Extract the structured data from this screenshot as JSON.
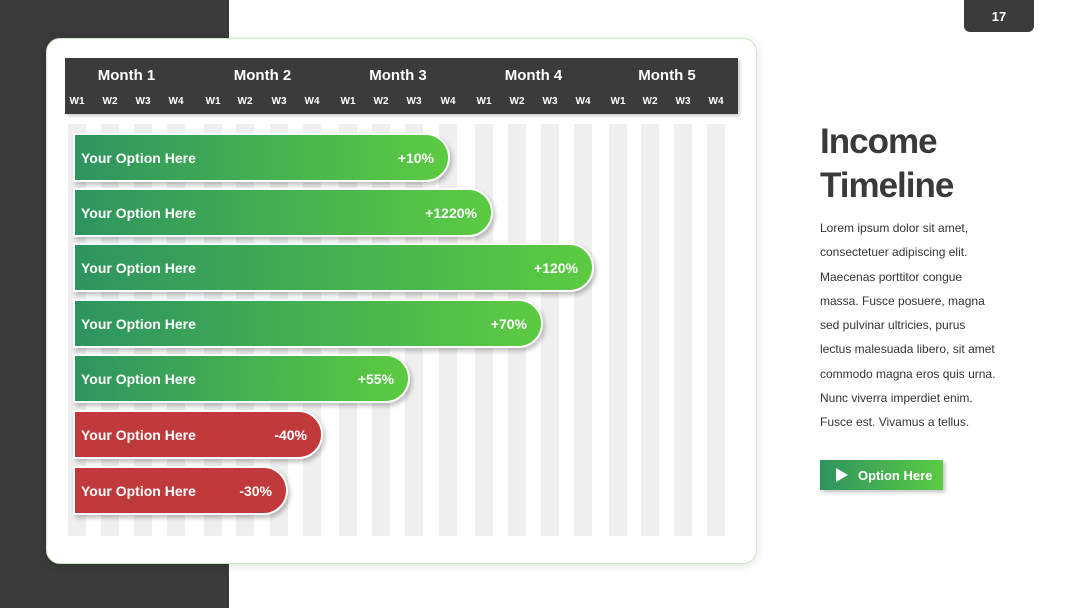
{
  "page_number": "17",
  "timeline": {
    "months": [
      {
        "label": "Month 1",
        "weeks": [
          "W1",
          "W2",
          "W3",
          "W4"
        ]
      },
      {
        "label": "Month 2",
        "weeks": [
          "W1",
          "W2",
          "W3",
          "W4"
        ]
      },
      {
        "label": "Month 3",
        "weeks": [
          "W1",
          "W2",
          "W3",
          "W4"
        ]
      },
      {
        "label": "Month 4",
        "weeks": [
          "W1",
          "W2",
          "W3",
          "W4"
        ]
      },
      {
        "label": "Month 5",
        "weeks": [
          "W1",
          "W2",
          "W3",
          "W4"
        ]
      }
    ],
    "rows": [
      {
        "label": "Your Option Here",
        "value": "+10%"
      },
      {
        "label": "Your Option Here",
        "value": "+1220%"
      },
      {
        "label": "Your Option Here",
        "value": "+120%"
      },
      {
        "label": "Your Option Here",
        "value": "+70%"
      },
      {
        "label": "Your Option Here",
        "value": "+55%"
      },
      {
        "label": "Your Option Here",
        "value": "-40%"
      },
      {
        "label": "Your Option Here",
        "value": "-30%"
      }
    ]
  },
  "sidebar": {
    "title": "Income Timeline",
    "body": "Lorem ipsum dolor sit amet, consectetuer adipiscing elit. Maecenas porttitor congue massa. Fusce posuere, magna sed pulvinar ultricies, purus lectus malesuada libero, sit amet commodo magna eros quis urna. Nunc viverra imperdiet enim. Fusce est. Vivamus a tellus.",
    "button": "Option Here"
  }
}
